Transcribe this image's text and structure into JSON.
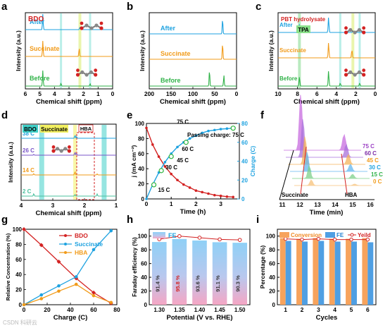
{
  "panels": {
    "a": {
      "letter": "a",
      "xlabel": "Chemical shift (ppm)",
      "ylabel": "Intensity (a.u.)",
      "xticks": [
        "6",
        "5",
        "4",
        "3",
        "2",
        "1",
        "0"
      ],
      "xlim": [
        6,
        0
      ],
      "tag": "BDO",
      "traces": [
        {
          "label": "After",
          "color": "#1ea2e0",
          "peaks": [
            [
              4.8,
              1.0
            ],
            [
              2.22,
              0.12
            ],
            [
              2.26,
              0.1
            ]
          ]
        },
        {
          "label": "Succinate",
          "color": "#f19b1a",
          "peaks": [
            [
              4.8,
              1.0
            ],
            [
              2.3,
              0.55
            ]
          ]
        },
        {
          "label": "Before",
          "color": "#30b248",
          "peaks": [
            [
              4.8,
              1.0
            ],
            [
              3.55,
              0.18
            ],
            [
              1.55,
              0.16
            ]
          ]
        }
      ]
    },
    "b": {
      "letter": "b",
      "xlabel": "Chemical shift (ppm)",
      "ylabel": "Intensity (a.u.)",
      "xticks": [
        "200",
        "150",
        "100",
        "50",
        "0"
      ],
      "xlim": [
        200,
        0
      ],
      "traces": [
        {
          "label": "After",
          "color": "#1ea2e0",
          "peaks": [
            [
              32,
              0.85
            ]
          ]
        },
        {
          "label": "Succinate",
          "color": "#f19b1a",
          "peaks": [
            [
              32,
              0.9
            ]
          ]
        },
        {
          "label": "Before",
          "color": "#30b248",
          "peaks": [
            [
              62,
              0.9
            ],
            [
              29,
              0.6
            ]
          ]
        }
      ]
    },
    "c": {
      "letter": "c",
      "xlabel": "Chemical shift (ppm)",
      "ylabel": "Intensity (a.u.)",
      "xticks": [
        "10",
        "8",
        "6",
        "4",
        "2",
        "0"
      ],
      "xlim": [
        10,
        0
      ],
      "tag": "PBT hydrolysate",
      "tag2": "TPA",
      "traces": [
        {
          "label": "After",
          "color": "#1ea2e0",
          "peaks": [
            [
              4.8,
              1.0
            ],
            [
              7.8,
              0.55
            ],
            [
              2.3,
              0.1
            ]
          ]
        },
        {
          "label": "Succinate",
          "color": "#f19b1a",
          "peaks": [
            [
              4.8,
              1.0
            ],
            [
              2.4,
              0.55
            ]
          ]
        },
        {
          "label": "Before",
          "color": "#30b248",
          "peaks": [
            [
              4.8,
              1.0
            ],
            [
              7.8,
              0.6
            ],
            [
              3.6,
              0.2
            ],
            [
              1.6,
              0.2
            ]
          ]
        }
      ]
    },
    "d": {
      "letter": "d",
      "xlabel": "Chemical shift (ppm)",
      "ylabel": "Intensity (a.u.)",
      "xticks": [
        "4",
        "3",
        "2",
        "1"
      ],
      "xlim": [
        4,
        1
      ],
      "tags": [
        "BDO",
        "Succinate",
        "HBA"
      ],
      "traces": [
        {
          "label": "38 C",
          "color": "#1ea2e0",
          "peaks": [
            [
              2.3,
              0.35
            ],
            [
              2.25,
              0.2
            ]
          ]
        },
        {
          "label": "26 C",
          "color": "#7a56c8",
          "peaks": [
            [
              2.3,
              0.35
            ],
            [
              2.25,
              0.2
            ],
            [
              3.6,
              0.1
            ]
          ]
        },
        {
          "label": "14 C",
          "color": "#f19b1a",
          "peaks": [
            [
              2.3,
              0.4
            ],
            [
              3.6,
              0.15
            ],
            [
              1.6,
              0.12
            ]
          ]
        },
        {
          "label": "2 C",
          "color": "#4bc09e",
          "peaks": [
            [
              2.3,
              0.2
            ],
            [
              3.6,
              0.3
            ],
            [
              1.6,
              0.25
            ]
          ]
        }
      ]
    },
    "e": {
      "letter": "e",
      "xlabel": "Time (h)",
      "ylabel": "j (mA cm⁻²)",
      "y2label": "Charge (C)",
      "xticks": [
        "0",
        "1",
        "2",
        "3"
      ],
      "yticks": [
        "0",
        "20",
        "40",
        "60",
        "80",
        "100"
      ],
      "y2ticks": [
        "0",
        "20",
        "40",
        "60",
        "80"
      ],
      "annotation": "Passing charge: 75 C",
      "charge_labels": [
        "15 C",
        "30 C",
        "45 C",
        "60 C",
        "75 C"
      ]
    },
    "f": {
      "letter": "f",
      "xlabel": "Time (min)",
      "xticks": [
        "11",
        "12",
        "13",
        "14",
        "15",
        "16"
      ],
      "labels": [
        "75 C",
        "60 C",
        "45 C",
        "30 C",
        "15 C",
        "0 C"
      ],
      "label_colors": [
        "#9b3fc4",
        "#7c2aa6",
        "#f19b1a",
        "#1ea2e0",
        "#30b248",
        "#f19b1a"
      ],
      "peak_labels": [
        "Succinate",
        "HBA"
      ]
    },
    "g": {
      "letter": "g",
      "xlabel": "Charge (C)",
      "ylabel": "Relative Concentration (%)",
      "xticks": [
        "0",
        "20",
        "40",
        "60",
        "80"
      ],
      "yticks": [
        "0",
        "20",
        "40",
        "60",
        "80",
        "100"
      ]
    },
    "h": {
      "letter": "h",
      "xlabel": "Potential (V vs. RHE)",
      "ylabel": "Faraday efficiency (%)",
      "legend": "FE",
      "yticks": [
        "0",
        "20",
        "40",
        "60",
        "80",
        "100"
      ]
    },
    "i": {
      "letter": "i",
      "xlabel": "Cycles",
      "ylabel": "Percentage (%)",
      "legend": [
        "Conversion",
        "FE",
        "Yeild"
      ],
      "yticks": [
        "0",
        "20",
        "40",
        "60",
        "80",
        "100"
      ]
    }
  },
  "chart_data": [
    {
      "type": "line",
      "panel": "e",
      "xlabel": "Time (h)",
      "ylabel": "j (mA cm⁻²)",
      "y2label": "Charge (C)",
      "xlim": [
        0,
        3.75
      ],
      "ylim": [
        0,
        100
      ],
      "y2lim": [
        0,
        80
      ],
      "series": [
        {
          "name": "j",
          "color": "#d32222",
          "x": [
            0,
            0.25,
            0.5,
            0.75,
            1.0,
            1.25,
            1.5,
            1.75,
            2.0,
            2.25,
            2.5,
            2.75,
            3.0,
            3.25,
            3.5
          ],
          "values": [
            94,
            72,
            56,
            43,
            33,
            25,
            19,
            15,
            11,
            9,
            7,
            5,
            4,
            3,
            2.5
          ]
        },
        {
          "name": "Charge",
          "color": "#1ea2e0",
          "x": [
            0,
            0.25,
            0.5,
            0.75,
            1.0,
            1.25,
            1.5,
            1.75,
            2.0,
            2.25,
            2.5,
            2.75,
            3.0,
            3.25,
            3.5
          ],
          "values": [
            0,
            15,
            28,
            39,
            48,
            55,
            60,
            64,
            67,
            70,
            72,
            73,
            74,
            74.5,
            75
          ]
        }
      ]
    },
    {
      "type": "line",
      "panel": "g",
      "xlabel": "Charge (C)",
      "ylabel": "Relative Concentration (%)",
      "xlim": [
        0,
        80
      ],
      "ylim": [
        0,
        100
      ],
      "x": [
        0,
        15,
        30,
        45,
        60,
        75
      ],
      "series": [
        {
          "name": "BDO",
          "color": "#d32222",
          "values": [
            100,
            79,
            57,
            35,
            16,
            2
          ]
        },
        {
          "name": "Succinate",
          "color": "#1ea2e0",
          "values": [
            0,
            13,
            25,
            37,
            73,
            98
          ]
        },
        {
          "name": "HBA",
          "color": "#f19b1a",
          "values": [
            0,
            8,
            18,
            27,
            12,
            3
          ]
        }
      ]
    },
    {
      "type": "bar",
      "panel": "h",
      "xlabel": "Potential (V vs. RHE)",
      "ylabel": "Faraday efficiency (%)",
      "ylim": [
        0,
        110
      ],
      "categories": [
        "1.30",
        "1.35",
        "1.40",
        "1.45",
        "1.50"
      ],
      "values": [
        91.4,
        95.8,
        93.6,
        91.1,
        90.3
      ],
      "value_labels": [
        "91.4 %",
        "95.8 %",
        "93.6 %",
        "91.1 %",
        "90.3 %"
      ],
      "series": [
        {
          "name": "FE",
          "values": [
            91.4,
            95.8,
            93.6,
            91.1,
            90.3
          ]
        }
      ]
    },
    {
      "type": "bar",
      "panel": "i",
      "xlabel": "Cycles",
      "ylabel": "Percentage (%)",
      "ylim": [
        0,
        110
      ],
      "categories": [
        "1",
        "2",
        "3",
        "4",
        "5",
        "6"
      ],
      "series": [
        {
          "name": "Conversion",
          "color": "#f7a35c",
          "values": [
            97,
            96,
            97,
            96,
            96,
            97
          ]
        },
        {
          "name": "FE",
          "color": "#4f9fe3",
          "values": [
            93,
            92,
            93,
            92,
            92,
            91
          ]
        },
        {
          "name": "Yeild",
          "color": "#d32222",
          "values": [
            96,
            95,
            96,
            95,
            95,
            95
          ]
        }
      ]
    }
  ],
  "watermark": "CSDN 科研云"
}
